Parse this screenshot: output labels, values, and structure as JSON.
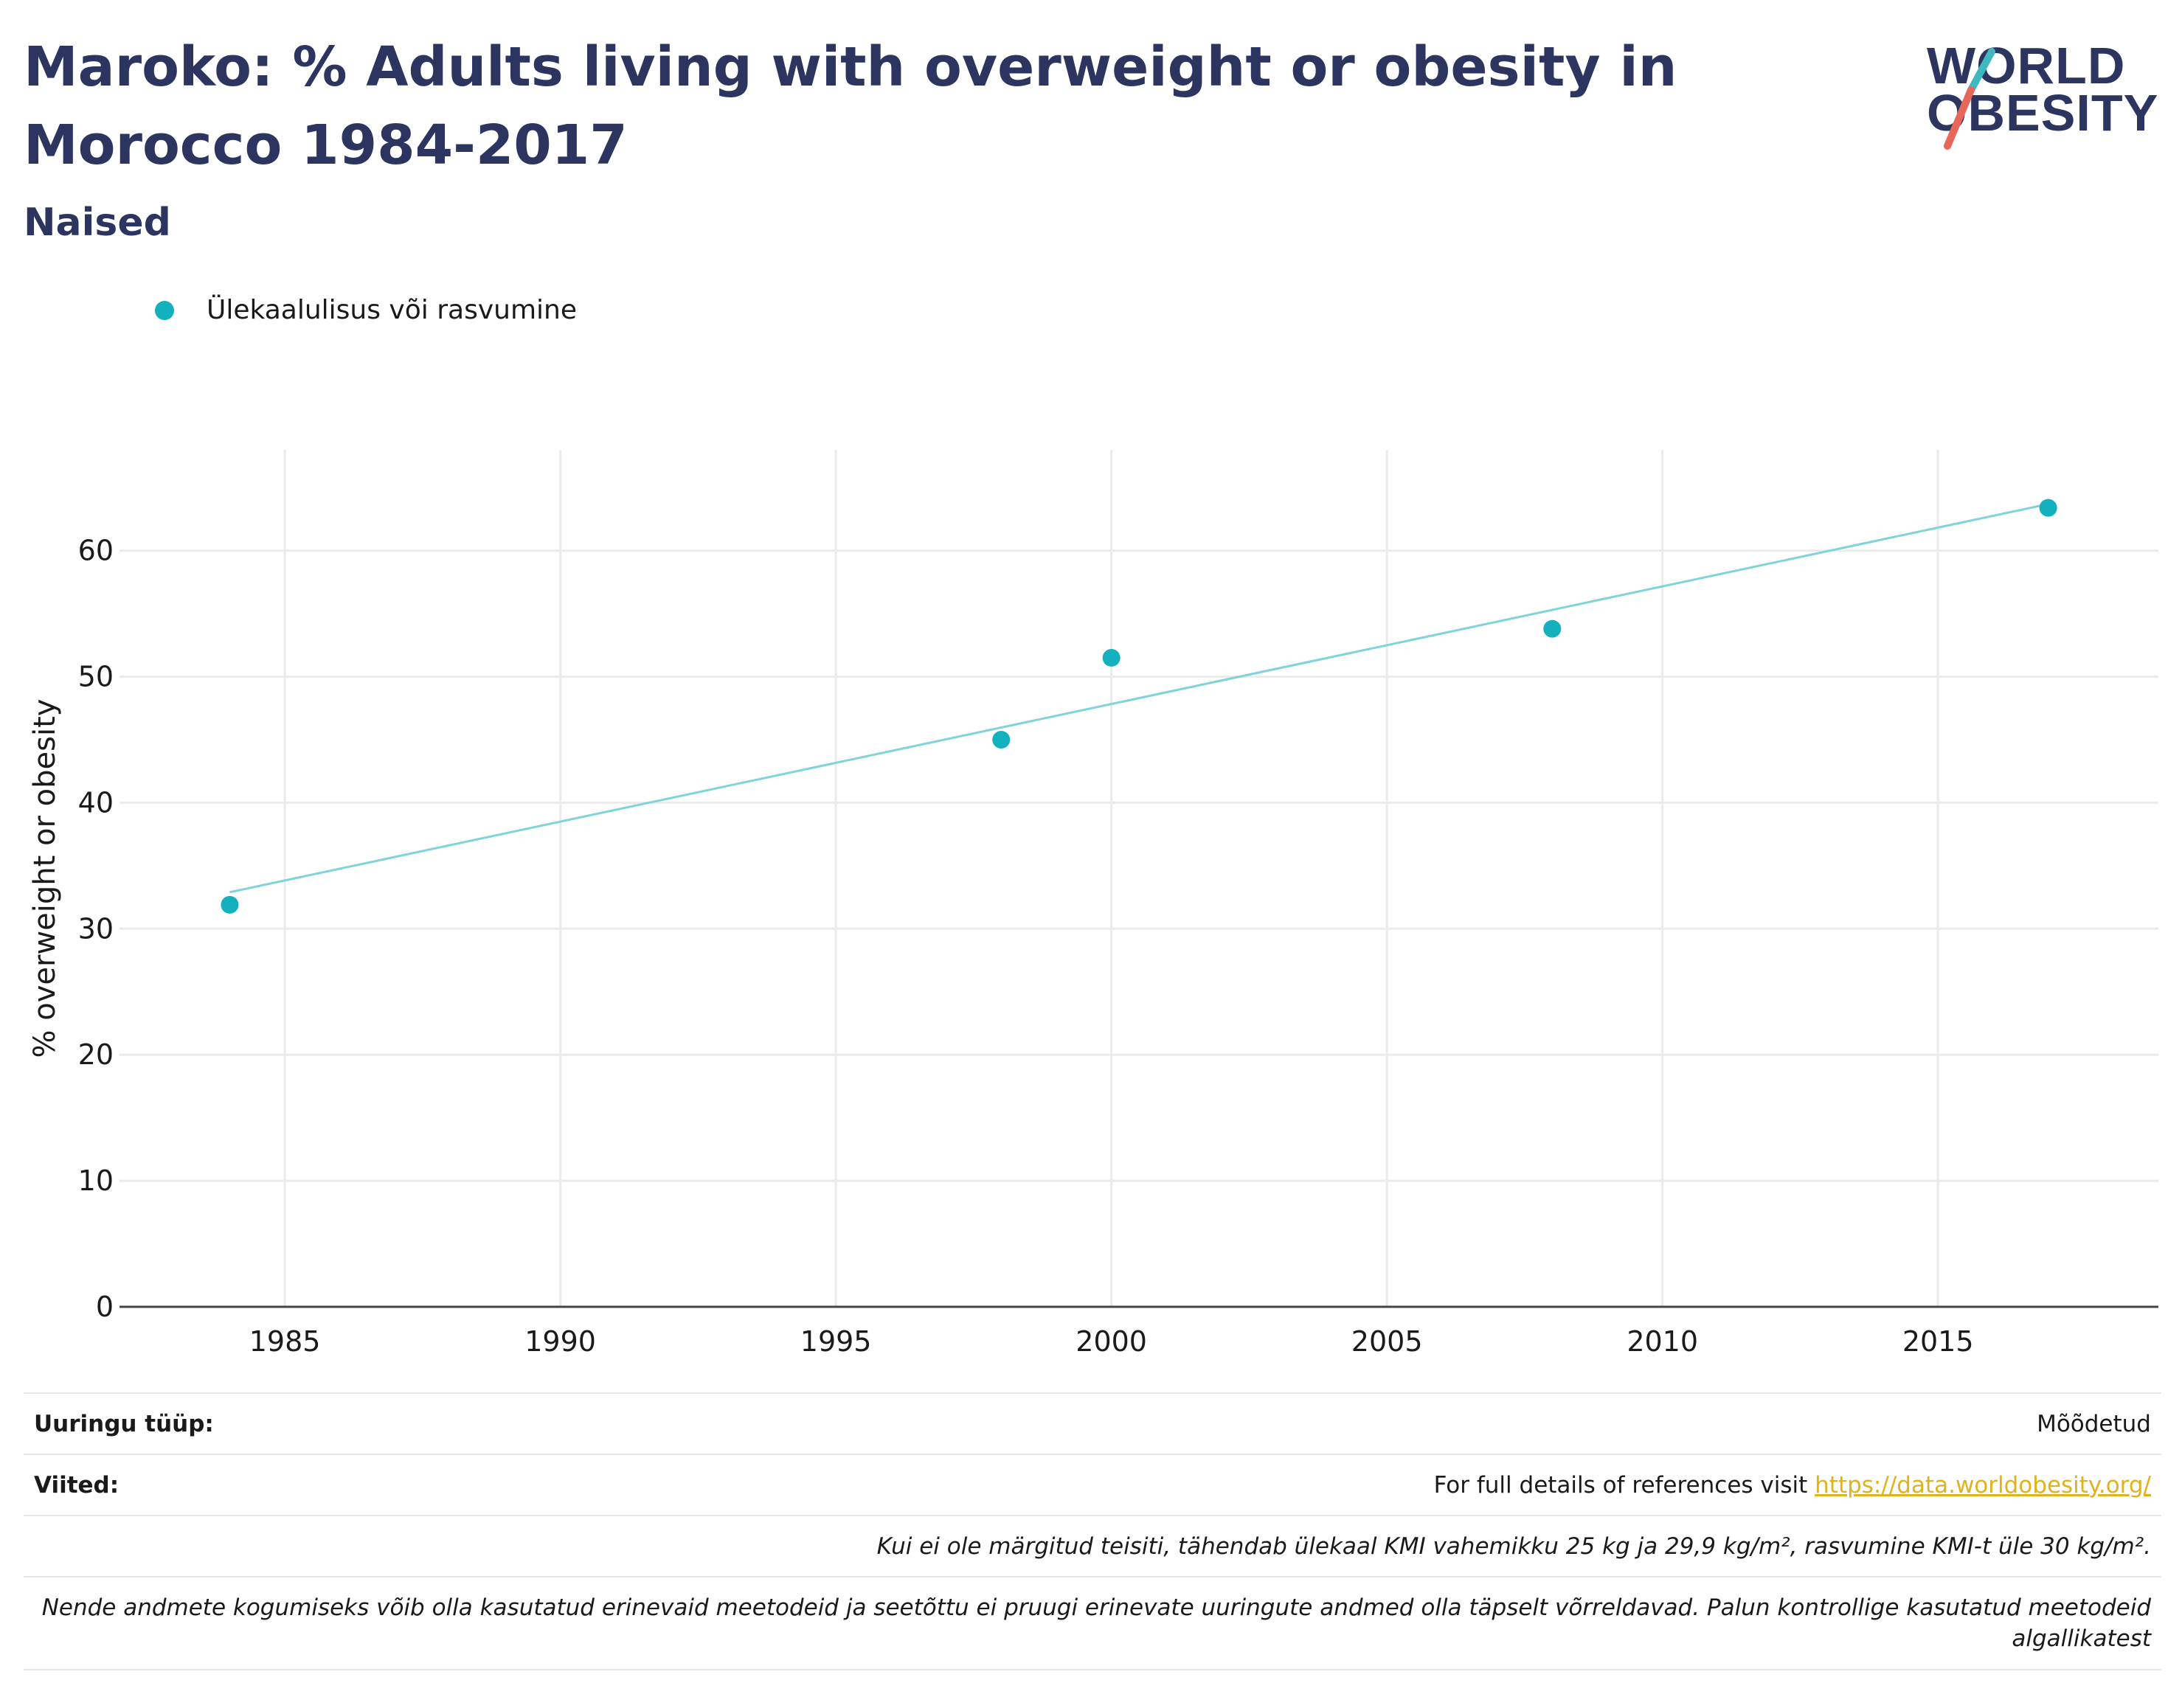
{
  "header": {
    "title": "Maroko: % Adults living with overweight or obesity in Morocco 1984-2017",
    "subtitle": "Naised",
    "logo_line1": "WORLD",
    "logo_line2": "OBESITY"
  },
  "legend": {
    "label": "Ülekaalulisus või rasvumine"
  },
  "colors": {
    "accent": "#13b1bd",
    "trend": "#7fd3d9",
    "title": "#2b3560",
    "link": "#e0b21b",
    "logo_teal": "#3fb8c0",
    "logo_red": "#e8665a"
  },
  "chart_data": {
    "type": "scatter",
    "title": "Maroko: % Adults living with overweight or obesity in Morocco 1984-2017",
    "subtitle": "Naised",
    "xlabel": "",
    "ylabel": "% overweight or obesity",
    "x_ticks": [
      1985,
      1990,
      1995,
      2000,
      2005,
      2010,
      2015
    ],
    "y_ticks": [
      0,
      10,
      20,
      30,
      40,
      50,
      60
    ],
    "xlim": [
      1982,
      2019
    ],
    "ylim": [
      0,
      68
    ],
    "grid": true,
    "legend_position": "top-left",
    "series": [
      {
        "name": "Ülekaalulisus või rasvumine",
        "x": [
          1984,
          1998,
          2000,
          2008,
          2017
        ],
        "y": [
          31.9,
          45.0,
          51.5,
          53.8,
          63.4
        ]
      }
    ],
    "trendline": {
      "x": [
        1984,
        2017
      ],
      "y": [
        32.9,
        63.7
      ]
    }
  },
  "info": {
    "survey_type_label": "Uuringu tüüp:",
    "survey_type_value": "Mõõdetud",
    "references_label": "Viited:",
    "references_text": "For full details of references visit ",
    "references_link": "https://data.worldobesity.org/",
    "definition_note": "Kui ei ole märgitud teisiti, tähendab ülekaal KMI vahemikku 25 kg ja 29,9 kg/m², rasvumine KMI-t üle 30 kg/m².",
    "methods_note": "Nende andmete kogumiseks võib olla kasutatud erinevaid meetodeid ja seetõttu ei pruugi erinevate uuringute andmed olla täpselt võrreldavad. Palun kontrollige kasutatud meetodeid algallikatest"
  }
}
